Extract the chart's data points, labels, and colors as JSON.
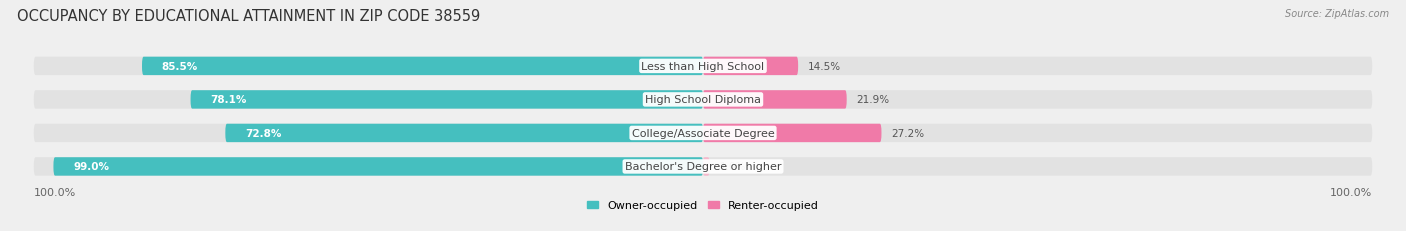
{
  "title": "OCCUPANCY BY EDUCATIONAL ATTAINMENT IN ZIP CODE 38559",
  "source": "Source: ZipAtlas.com",
  "categories": [
    "Less than High School",
    "High School Diploma",
    "College/Associate Degree",
    "Bachelor's Degree or higher"
  ],
  "owner_values": [
    85.5,
    78.1,
    72.8,
    99.0
  ],
  "renter_values": [
    14.5,
    21.9,
    27.2,
    1.0
  ],
  "owner_color": "#45bfbf",
  "renter_colors": [
    "#f07aa8",
    "#f07aa8",
    "#f07aa8",
    "#f5b8cc"
  ],
  "renter_color_main": "#f07aa8",
  "renter_color_light": "#f5b8cc",
  "bg_color": "#efefef",
  "bar_bg_color": "#e0e0e0",
  "legend_owner": "Owner-occupied",
  "legend_renter": "Renter-occupied",
  "x_left_label": "100.0%",
  "x_right_label": "100.0%",
  "title_fontsize": 10.5,
  "axis_fontsize": 8,
  "bar_label_fontsize": 7.5,
  "category_fontsize": 8
}
